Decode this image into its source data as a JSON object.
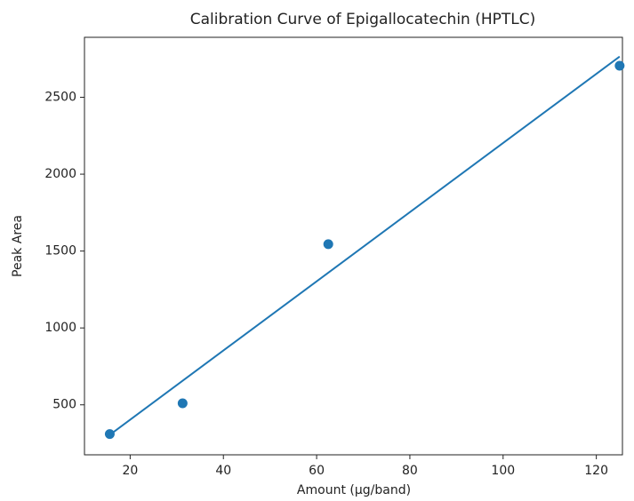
{
  "chart_data": {
    "type": "scatter",
    "title": "Calibration Curve of Epigallocatechin (HPTLC)",
    "x_label": "Amount (µg/band)",
    "y_label": "Peak Area",
    "x": [
      15.625,
      31.25,
      62.5,
      125
    ],
    "series": [
      {
        "type": "scatter",
        "color": "#1f77b4",
        "values": [
          310,
          510,
          1545,
          2705
        ]
      },
      {
        "type": "line",
        "color": "#1f77b4",
        "x": [
          15.625,
          125
        ],
        "values": [
          305,
          2765
        ]
      }
    ],
    "xlim": [
      10.2,
      125.6
    ],
    "ylim": [
      175,
      2890
    ],
    "xticks": [
      20,
      40,
      60,
      80,
      100,
      120
    ],
    "yticks": [
      500,
      1000,
      1500,
      2000,
      2500
    ],
    "grid": false
  }
}
